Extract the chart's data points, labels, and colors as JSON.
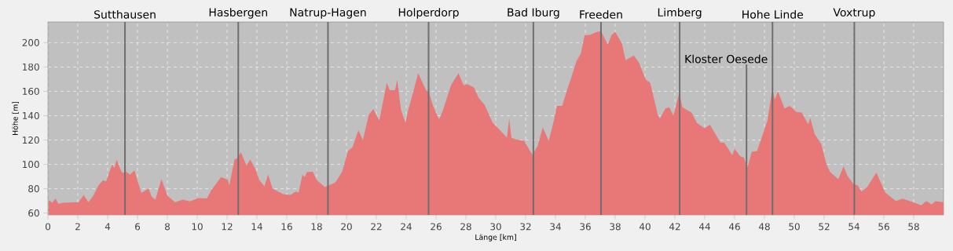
{
  "chart_data": {
    "type": "area",
    "xlabel": "Länge [km]",
    "ylabel": "Höhe [m]",
    "color": "#e87878",
    "grid": true,
    "xlim": [
      0,
      60
    ],
    "ylim": [
      58.5,
      217
    ],
    "xticks": [
      0,
      2,
      4,
      6,
      8,
      10,
      12,
      14,
      16,
      18,
      20,
      22,
      24,
      26,
      28,
      30,
      32,
      34,
      36,
      38,
      40,
      42,
      44,
      46,
      48,
      50,
      52,
      54,
      56,
      58
    ],
    "yticks": [
      60,
      80,
      100,
      120,
      140,
      160,
      180,
      200
    ],
    "x": [
      0.03,
      0.3,
      0.5,
      0.7,
      1.0,
      2.05,
      2.4,
      2.7,
      3.0,
      3.4,
      3.7,
      3.9,
      4.3,
      4.45,
      4.6,
      4.85,
      5.0,
      5.25,
      5.5,
      5.8,
      6.25,
      6.75,
      6.95,
      7.2,
      7.6,
      8.0,
      8.5,
      9.05,
      9.5,
      10.1,
      10.65,
      10.95,
      11.6,
      12.05,
      12.15,
      12.5,
      12.67,
      12.93,
      13.3,
      13.55,
      13.9,
      14.15,
      14.5,
      14.75,
      15.05,
      15.75,
      16.25,
      16.6,
      16.8,
      17.05,
      17.2,
      17.35,
      17.75,
      18.0,
      18.55,
      19.25,
      19.7,
      20.1,
      20.4,
      20.8,
      21.1,
      21.5,
      21.8,
      22.2,
      22.7,
      22.9,
      23.25,
      23.4,
      23.65,
      23.95,
      24.1,
      24.5,
      24.8,
      25.35,
      25.5,
      25.8,
      26.2,
      26.45,
      27.0,
      27.5,
      27.85,
      28.1,
      28.55,
      28.85,
      29.25,
      29.8,
      30.1,
      30.75,
      30.9,
      31.05,
      31.35,
      31.9,
      32.3,
      32.45,
      32.8,
      33.15,
      33.55,
      33.9,
      34.1,
      34.45,
      34.8,
      35.05,
      35.4,
      35.7,
      35.95,
      36.3,
      36.7,
      37.05,
      37.5,
      37.75,
      38.0,
      38.45,
      38.7,
      39.25,
      39.6,
      40.05,
      40.35,
      40.85,
      41.0,
      41.37,
      41.63,
      41.9,
      42.3,
      42.5,
      43.12,
      43.47,
      44.0,
      44.35,
      45.05,
      45.3,
      45.85,
      46.0,
      46.37,
      46.63,
      46.85,
      47.15,
      47.5,
      47.7,
      48.2,
      48.53,
      48.7,
      48.9,
      49.35,
      49.7,
      50.15,
      50.5,
      50.93,
      51.07,
      51.37,
      51.8,
      52.16,
      52.4,
      52.95,
      53.3,
      53.56,
      53.96,
      54.26,
      54.5,
      54.88,
      55.5,
      56.1,
      56.8,
      57.25,
      57.95,
      58.5,
      58.85,
      59.2,
      59.45,
      60.0
    ],
    "values": [
      70.7,
      68.5,
      72,
      67.7,
      68.5,
      69,
      75,
      69,
      73.5,
      83,
      87,
      86,
      100,
      97,
      104,
      96,
      93,
      94,
      91.6,
      95,
      76.7,
      80,
      73.5,
      71,
      88,
      74.5,
      69,
      71,
      69.6,
      72.4,
      72,
      79,
      89.5,
      87.4,
      82.6,
      104,
      105,
      110,
      99,
      104,
      96,
      87.4,
      82,
      91.6,
      80,
      75.6,
      75,
      77.7,
      77,
      91.6,
      89.5,
      93.8,
      94,
      87.4,
      81.4,
      85,
      93.8,
      111,
      114,
      128,
      120,
      141,
      145.5,
      136,
      167,
      161,
      161,
      169.6,
      145,
      134,
      143,
      161,
      175,
      160.4,
      160,
      148,
      137,
      144,
      165,
      175,
      165,
      166,
      163,
      154.7,
      149,
      134,
      130.5,
      122,
      137.6,
      122,
      120.5,
      119.4,
      111,
      108,
      115,
      130.5,
      119.4,
      136.5,
      148,
      148,
      162,
      171,
      184.6,
      191,
      206,
      206.4,
      208.5,
      209.6,
      198.5,
      206,
      209,
      199.5,
      185.6,
      189.5,
      183.5,
      169.6,
      167,
      141,
      137.6,
      146,
      147,
      140,
      159,
      147,
      142.5,
      134,
      129.7,
      132.6,
      118,
      118,
      107.6,
      113,
      106.6,
      105.5,
      97,
      110.4,
      111,
      118,
      136,
      162,
      153,
      160,
      146,
      148,
      143,
      142.5,
      133,
      138,
      124.7,
      117,
      100,
      93.8,
      87.8,
      98.5,
      90.6,
      84,
      82.6,
      77.7,
      81.4,
      93.3,
      76.7,
      70,
      71.8,
      69,
      66.4,
      70,
      67,
      69.8,
      69
    ],
    "ref_lines": [
      {
        "axis": "x",
        "value": 5.16,
        "label": "Sutthausen",
        "color": "#6e6e6e"
      },
      {
        "axis": "x",
        "value": 12.75,
        "label": "Hasbergen",
        "color": "#6e6e6e"
      },
      {
        "axis": "x",
        "value": 18.76,
        "label": "Natrup-Hagen",
        "color": "#6e6e6e"
      },
      {
        "axis": "x",
        "value": 25.5,
        "label": "Holperdorp",
        "color": "#6e6e6e"
      },
      {
        "axis": "x",
        "value": 32.52,
        "label": "Bad Iburg",
        "color": "#6e6e6e"
      },
      {
        "axis": "x",
        "value": 37.05,
        "label": "Freeden",
        "color": "#6e6e6e"
      },
      {
        "axis": "x",
        "value": 42.32,
        "label": "Limberg",
        "color": "#6e6e6e"
      },
      {
        "axis": "x",
        "value": 46.8,
        "label": "Kloster Oesede",
        "color": "#6e6e6e"
      },
      {
        "axis": "x",
        "value": 48.54,
        "label": "Hohe Linde",
        "color": "#6e6e6e"
      },
      {
        "axis": "x",
        "value": 54.02,
        "label": "Voxtrup",
        "color": "#6e6e6e"
      }
    ]
  }
}
